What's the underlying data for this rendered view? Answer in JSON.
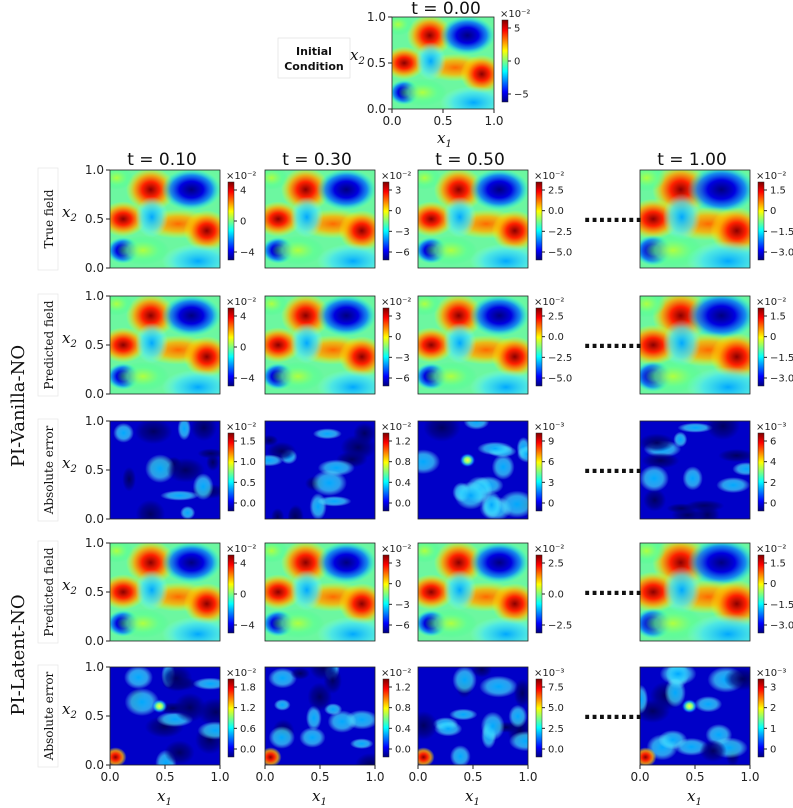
{
  "colors": {
    "jet": [
      "#00007f",
      "#0000ff",
      "#007fff",
      "#00ffff",
      "#7fff7f",
      "#ffff00",
      "#ff7f00",
      "#ff0000",
      "#7f0000"
    ],
    "background": "#ffffff",
    "text": "#111111"
  },
  "figure": {
    "initial": {
      "label_line1": "Initial",
      "label_line2": "Condition",
      "title": "t = 0.00",
      "xlabel": "x1",
      "ylabel": "x2"
    },
    "rows": [
      {
        "id": "true_field",
        "label": "True field"
      },
      {
        "id": "vanilla_predicted",
        "label": "Predicted field"
      },
      {
        "id": "vanilla_error",
        "label": "Absolute error"
      },
      {
        "id": "latent_predicted",
        "label": "Predicted field"
      },
      {
        "id": "latent_error",
        "label": "Absolute error"
      }
    ],
    "groups": [
      {
        "label": "PI-Vanilla-NO"
      },
      {
        "label": "PI-Latent-NO"
      }
    ],
    "ellipsis": "........",
    "column_xlabel": "x1",
    "row_ylabel": "x2"
  },
  "chart_data": [
    {
      "type": "heatmap",
      "panel": "initial",
      "title": "t = 0.00",
      "xlabel": "x1",
      "ylabel": "x2",
      "xlim": [
        0.0,
        1.0
      ],
      "ylim": [
        0.0,
        1.0
      ],
      "x_ticks": [
        "0.0",
        "0.5",
        "1.0"
      ],
      "y_ticks": [
        "0.0",
        "0.5",
        "1.0"
      ],
      "colormap": "jet",
      "colorbar": {
        "exponent": "×10⁻²",
        "ticks": [
          "5",
          "0",
          "−5"
        ],
        "range": [
          -8,
          8
        ]
      }
    },
    {
      "type": "heatmap",
      "columns": [
        {
          "title": "t = 0.10"
        },
        {
          "title": "t = 0.30"
        },
        {
          "title": "t = 0.50"
        },
        {
          "title": "t = 1.00"
        }
      ],
      "xlim": [
        0.0,
        1.0
      ],
      "ylim": [
        0.0,
        1.0
      ],
      "x_ticks": [
        "0.0",
        "0.5",
        "1.0"
      ],
      "y_ticks": [
        "0.0",
        "0.5",
        "1.0"
      ],
      "colormap": "jet",
      "colorbars": {
        "true_field": [
          {
            "exponent": "×10⁻²",
            "ticks": [
              "4",
              "0",
              "−4"
            ]
          },
          {
            "exponent": "×10⁻²",
            "ticks": [
              "3",
              "0",
              "−3",
              "−6"
            ]
          },
          {
            "exponent": "×10⁻²",
            "ticks": [
              "2.5",
              "0.0",
              "−2.5",
              "−5.0"
            ]
          },
          {
            "exponent": "×10⁻²",
            "ticks": [
              "1.5",
              "0",
              "−1.5",
              "−3.0"
            ]
          }
        ],
        "vanilla_predicted": [
          {
            "exponent": "×10⁻²",
            "ticks": [
              "4",
              "0",
              "−4"
            ]
          },
          {
            "exponent": "×10⁻²",
            "ticks": [
              "3",
              "0",
              "−3",
              "−6"
            ]
          },
          {
            "exponent": "×10⁻²",
            "ticks": [
              "2.5",
              "0.0",
              "−2.5",
              "−5.0"
            ]
          },
          {
            "exponent": "×10⁻²",
            "ticks": [
              "1.5",
              "0",
              "−1.5",
              "−3.0"
            ]
          }
        ],
        "vanilla_error": [
          {
            "exponent": "×10⁻²",
            "ticks": [
              "1.5",
              "1.0",
              "0.5",
              "0.0"
            ]
          },
          {
            "exponent": "×10⁻²",
            "ticks": [
              "1.2",
              "0.8",
              "0.4",
              "0.0"
            ]
          },
          {
            "exponent": "×10⁻³",
            "ticks": [
              "9",
              "6",
              "3",
              "0"
            ]
          },
          {
            "exponent": "×10⁻³",
            "ticks": [
              "6",
              "4",
              "2",
              "0"
            ]
          }
        ],
        "latent_predicted": [
          {
            "exponent": "×10⁻²",
            "ticks": [
              "4",
              "0",
              "−4"
            ]
          },
          {
            "exponent": "×10⁻²",
            "ticks": [
              "3",
              "0",
              "−3",
              "−6"
            ]
          },
          {
            "exponent": "×10⁻²",
            "ticks": [
              "2.5",
              "0.0",
              "−2.5"
            ]
          },
          {
            "exponent": "×10⁻²",
            "ticks": [
              "1.5",
              "0",
              "−1.5",
              "−3.0"
            ]
          }
        ],
        "latent_error": [
          {
            "exponent": "×10⁻²",
            "ticks": [
              "1.8",
              "1.2",
              "0.6",
              "0.0"
            ]
          },
          {
            "exponent": "×10⁻²",
            "ticks": [
              "1.2",
              "0.8",
              "0.4",
              "0.0"
            ]
          },
          {
            "exponent": "×10⁻³",
            "ticks": [
              "7.5",
              "5.0",
              "2.5",
              "0.0"
            ]
          },
          {
            "exponent": "×10⁻³",
            "ticks": [
              "3",
              "2",
              "1",
              "0"
            ]
          }
        ]
      }
    }
  ]
}
